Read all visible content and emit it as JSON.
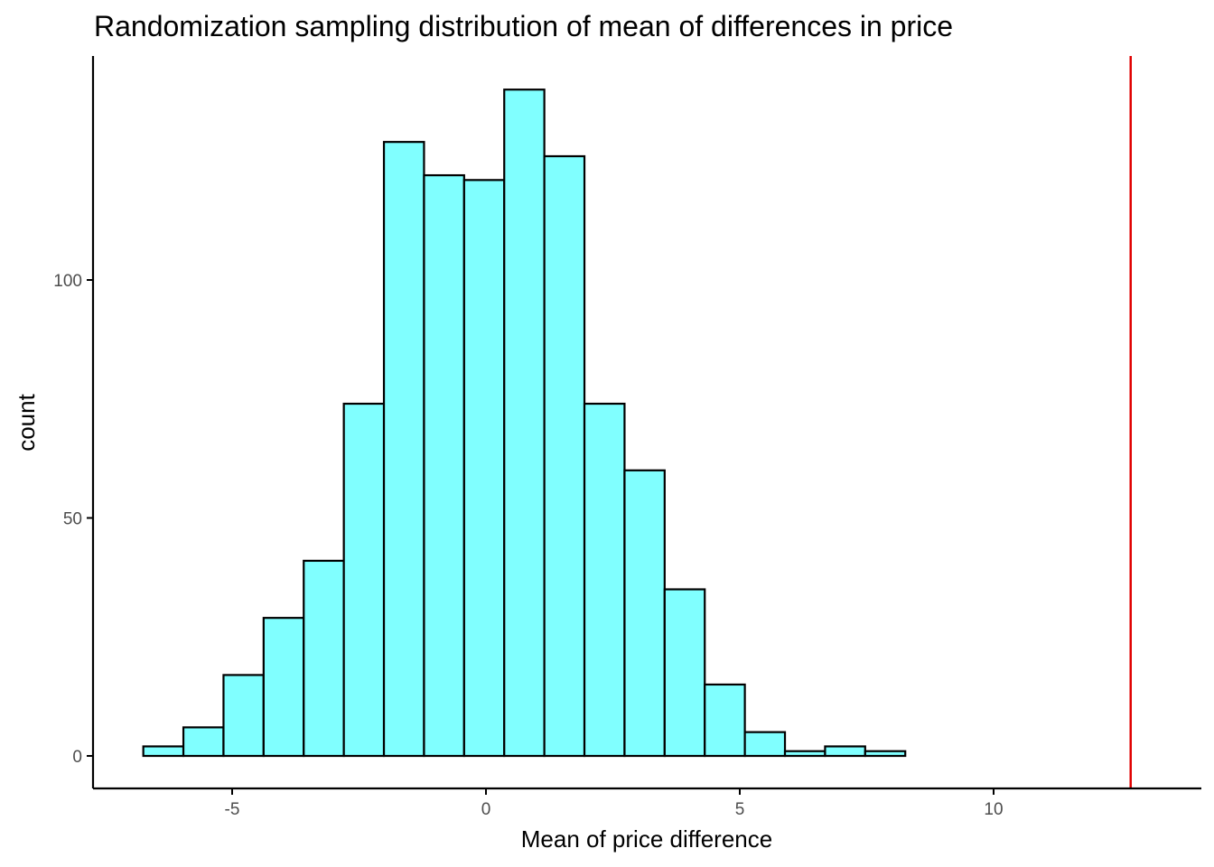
{
  "chart_data": {
    "type": "bar",
    "title": "Randomization sampling distribution of mean of differences in price",
    "xlabel": "Mean of price difference",
    "ylabel": "count",
    "xlim": [
      -7.6,
      14.6
    ],
    "ylim": [
      0,
      140
    ],
    "x_ticks": [
      -5,
      0,
      5,
      10
    ],
    "x_tick_labels": [
      "-5",
      "0",
      "5",
      "10"
    ],
    "y_ticks": [
      0,
      50,
      100
    ],
    "y_tick_labels": [
      "0",
      "50",
      "100"
    ],
    "bin_edges": [
      -6.75,
      -5.96,
      -5.17,
      -4.38,
      -3.59,
      -2.8,
      -2.01,
      -1.22,
      -0.43,
      0.36,
      1.15,
      1.94,
      2.73,
      3.52,
      4.31,
      5.1,
      5.89,
      6.68,
      7.47,
      8.26,
      9.05,
      9.84,
      10.63,
      11.42,
      12.21,
      13.0
    ],
    "values": [
      2,
      6,
      17,
      29,
      41,
      74,
      129,
      122,
      121,
      140,
      126,
      74,
      60,
      35,
      15,
      5,
      1,
      2,
      1,
      0,
      0,
      0,
      0,
      0,
      0
    ],
    "fill_color": "#80ffff",
    "stroke_color": "#000000",
    "reference_line": {
      "x": 12.7,
      "color": "#e00000"
    },
    "grid": false
  }
}
